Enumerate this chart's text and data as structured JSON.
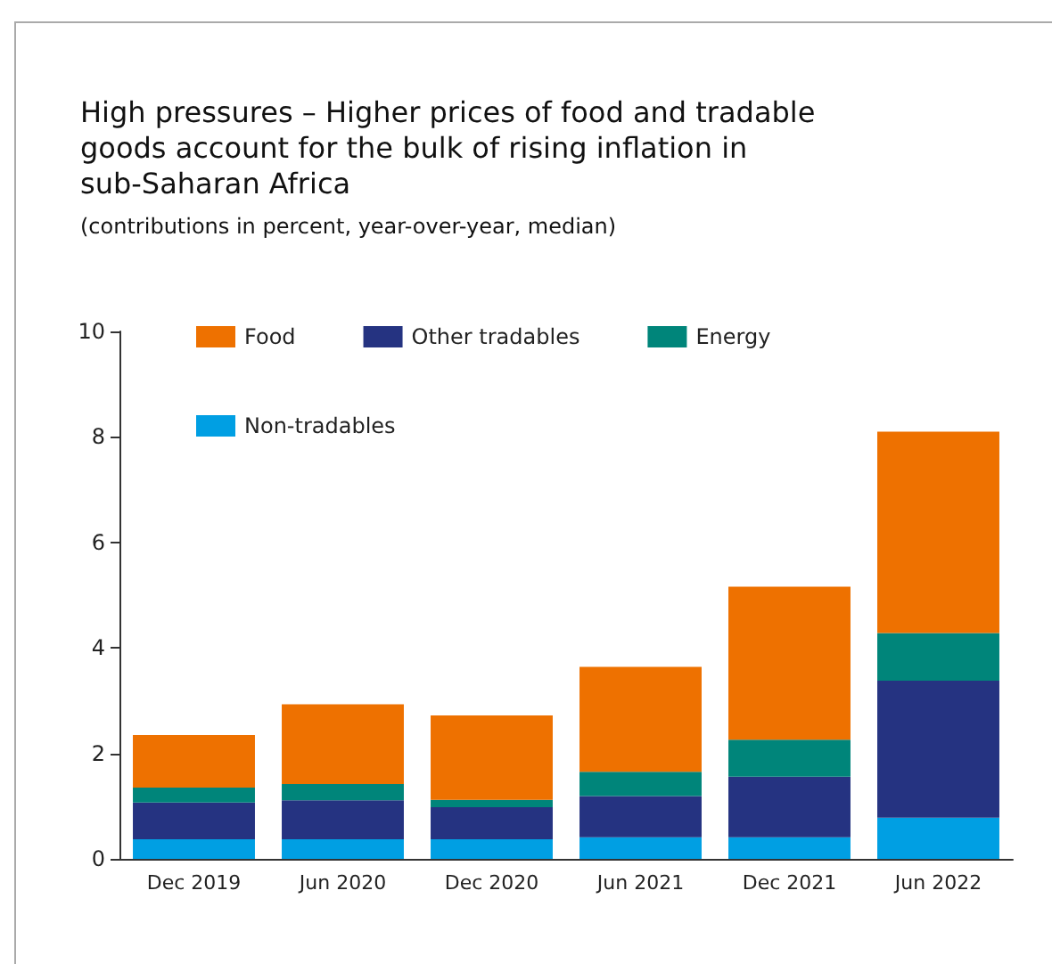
{
  "chart_data": {
    "type": "bar",
    "title": "High pressures – Higher prices of food and tradable goods account for the bulk of rising inflation in sub-Saharan Africa",
    "subtitle": "(contributions in percent, year-over-year, median)",
    "categories": [
      "Dec 2019",
      "Jun 2020",
      "Dec 2020",
      "Jun 2021",
      "Dec 2021",
      "Jun 2022"
    ],
    "stacked": true,
    "series": [
      {
        "name": "Non-tradables",
        "color": "#009fe3",
        "values": [
          0.37,
          0.37,
          0.37,
          0.41,
          0.41,
          0.78
        ]
      },
      {
        "name": "Other tradables",
        "color": "#253381",
        "values": [
          0.7,
          0.74,
          0.61,
          0.78,
          1.15,
          2.6
        ]
      },
      {
        "name": "Energy",
        "color": "#00857a",
        "values": [
          0.28,
          0.31,
          0.14,
          0.46,
          0.7,
          0.9
        ]
      },
      {
        "name": "Food",
        "color": "#ee7100",
        "values": [
          1.0,
          1.51,
          1.6,
          1.99,
          2.9,
          3.82
        ]
      }
    ],
    "ylim": [
      0,
      10
    ],
    "yticks": [
      0,
      2,
      4,
      6,
      8,
      10
    ],
    "grid": false,
    "legend": "top left"
  }
}
